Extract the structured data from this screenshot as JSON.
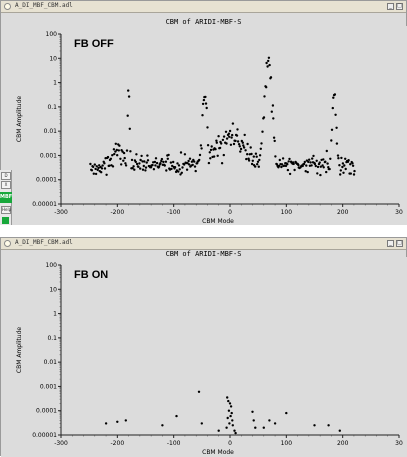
{
  "windows": [
    {
      "file": "A_DI_MBF_CBM.adl",
      "plot_title": "CBM of ARIDI-MBF-S",
      "overlay_label": "FB OFF",
      "ylabel": "CBM Amplitude",
      "xlabel": "CBM Mode"
    },
    {
      "file": "A_DI_MBF_CBM.adl",
      "plot_title": "CBM of ARIDI-MBF-S",
      "overlay_label": "FB ON",
      "ylabel": "CBM Amplitude",
      "xlabel": "CBM Mode"
    }
  ],
  "side_panel": {
    "btn1": "D",
    "btn2": "X",
    "help": "Help",
    "status": "MBF"
  },
  "window_buttons": [
    "_",
    "□"
  ],
  "chart_data": [
    {
      "type": "scatter",
      "title": "CBM of ARIDI-MBF-S",
      "xlabel": "CBM Mode",
      "ylabel": "CBM Amplitude",
      "xlim": [
        -300,
        300
      ],
      "ylim": [
        1e-05,
        100
      ],
      "yscale": "log",
      "xticks": [
        "-300",
        "-200",
        "-100",
        "0",
        "100",
        "200",
        "30"
      ],
      "yticks": [
        "0.00001",
        "0.0001",
        "0.001",
        "0.01",
        "0.1",
        "1",
        "10",
        "100"
      ],
      "annotation": "FB OFF",
      "generator": {
        "xmin": -248,
        "xmax": 222,
        "base_log": -3.7,
        "spread": 0.5,
        "peaks": [
          {
            "x": -180,
            "log": -0.6,
            "width": 3
          },
          {
            "x": -45,
            "log": -0.2,
            "width": 6
          },
          {
            "x": 68,
            "log": 1.05,
            "width": 10
          },
          {
            "x": 185,
            "log": -0.45,
            "width": 5
          },
          {
            "x": -200,
            "log": -2.8,
            "width": 15
          },
          {
            "x": 0,
            "log": -2.3,
            "width": 40
          }
        ]
      }
    },
    {
      "type": "scatter",
      "title": "CBM of ARIDI-MBF-S",
      "xlabel": "CBM Mode",
      "ylabel": "CBM Amplitude",
      "xlim": [
        -300,
        300
      ],
      "ylim": [
        1e-05,
        100
      ],
      "yscale": "log",
      "xticks": [
        "-300",
        "-200",
        "-100",
        "0",
        "100",
        "200",
        "30"
      ],
      "yticks": [
        "0.00001",
        "0.0001",
        "0.001",
        "0.01",
        "0.1",
        "1",
        "10",
        "100"
      ],
      "annotation": "FB ON",
      "points": [
        [
          -220,
          3e-05
        ],
        [
          -200,
          3.5e-05
        ],
        [
          -185,
          4e-05
        ],
        [
          -120,
          2.5e-05
        ],
        [
          -95,
          6e-05
        ],
        [
          -55,
          0.0006
        ],
        [
          -50,
          3e-05
        ],
        [
          -20,
          1.5e-05
        ],
        [
          -5,
          0.00035
        ],
        [
          -3,
          0.00025
        ],
        [
          0,
          0.0002
        ],
        [
          2,
          0.00015
        ],
        [
          -2,
          0.0001
        ],
        [
          3,
          8e-05
        ],
        [
          1,
          6e-05
        ],
        [
          -4,
          5e-05
        ],
        [
          4,
          4e-05
        ],
        [
          -1,
          3e-05
        ],
        [
          5,
          2.5e-05
        ],
        [
          -6,
          2e-05
        ],
        [
          8,
          1.5e-05
        ],
        [
          10,
          1.2e-05
        ],
        [
          40,
          9e-05
        ],
        [
          42,
          4e-05
        ],
        [
          45,
          2e-05
        ],
        [
          60,
          2e-05
        ],
        [
          70,
          4e-05
        ],
        [
          80,
          3e-05
        ],
        [
          100,
          8e-05
        ],
        [
          150,
          2.5e-05
        ],
        [
          175,
          2.5e-05
        ],
        [
          195,
          1.5e-05
        ]
      ]
    }
  ]
}
